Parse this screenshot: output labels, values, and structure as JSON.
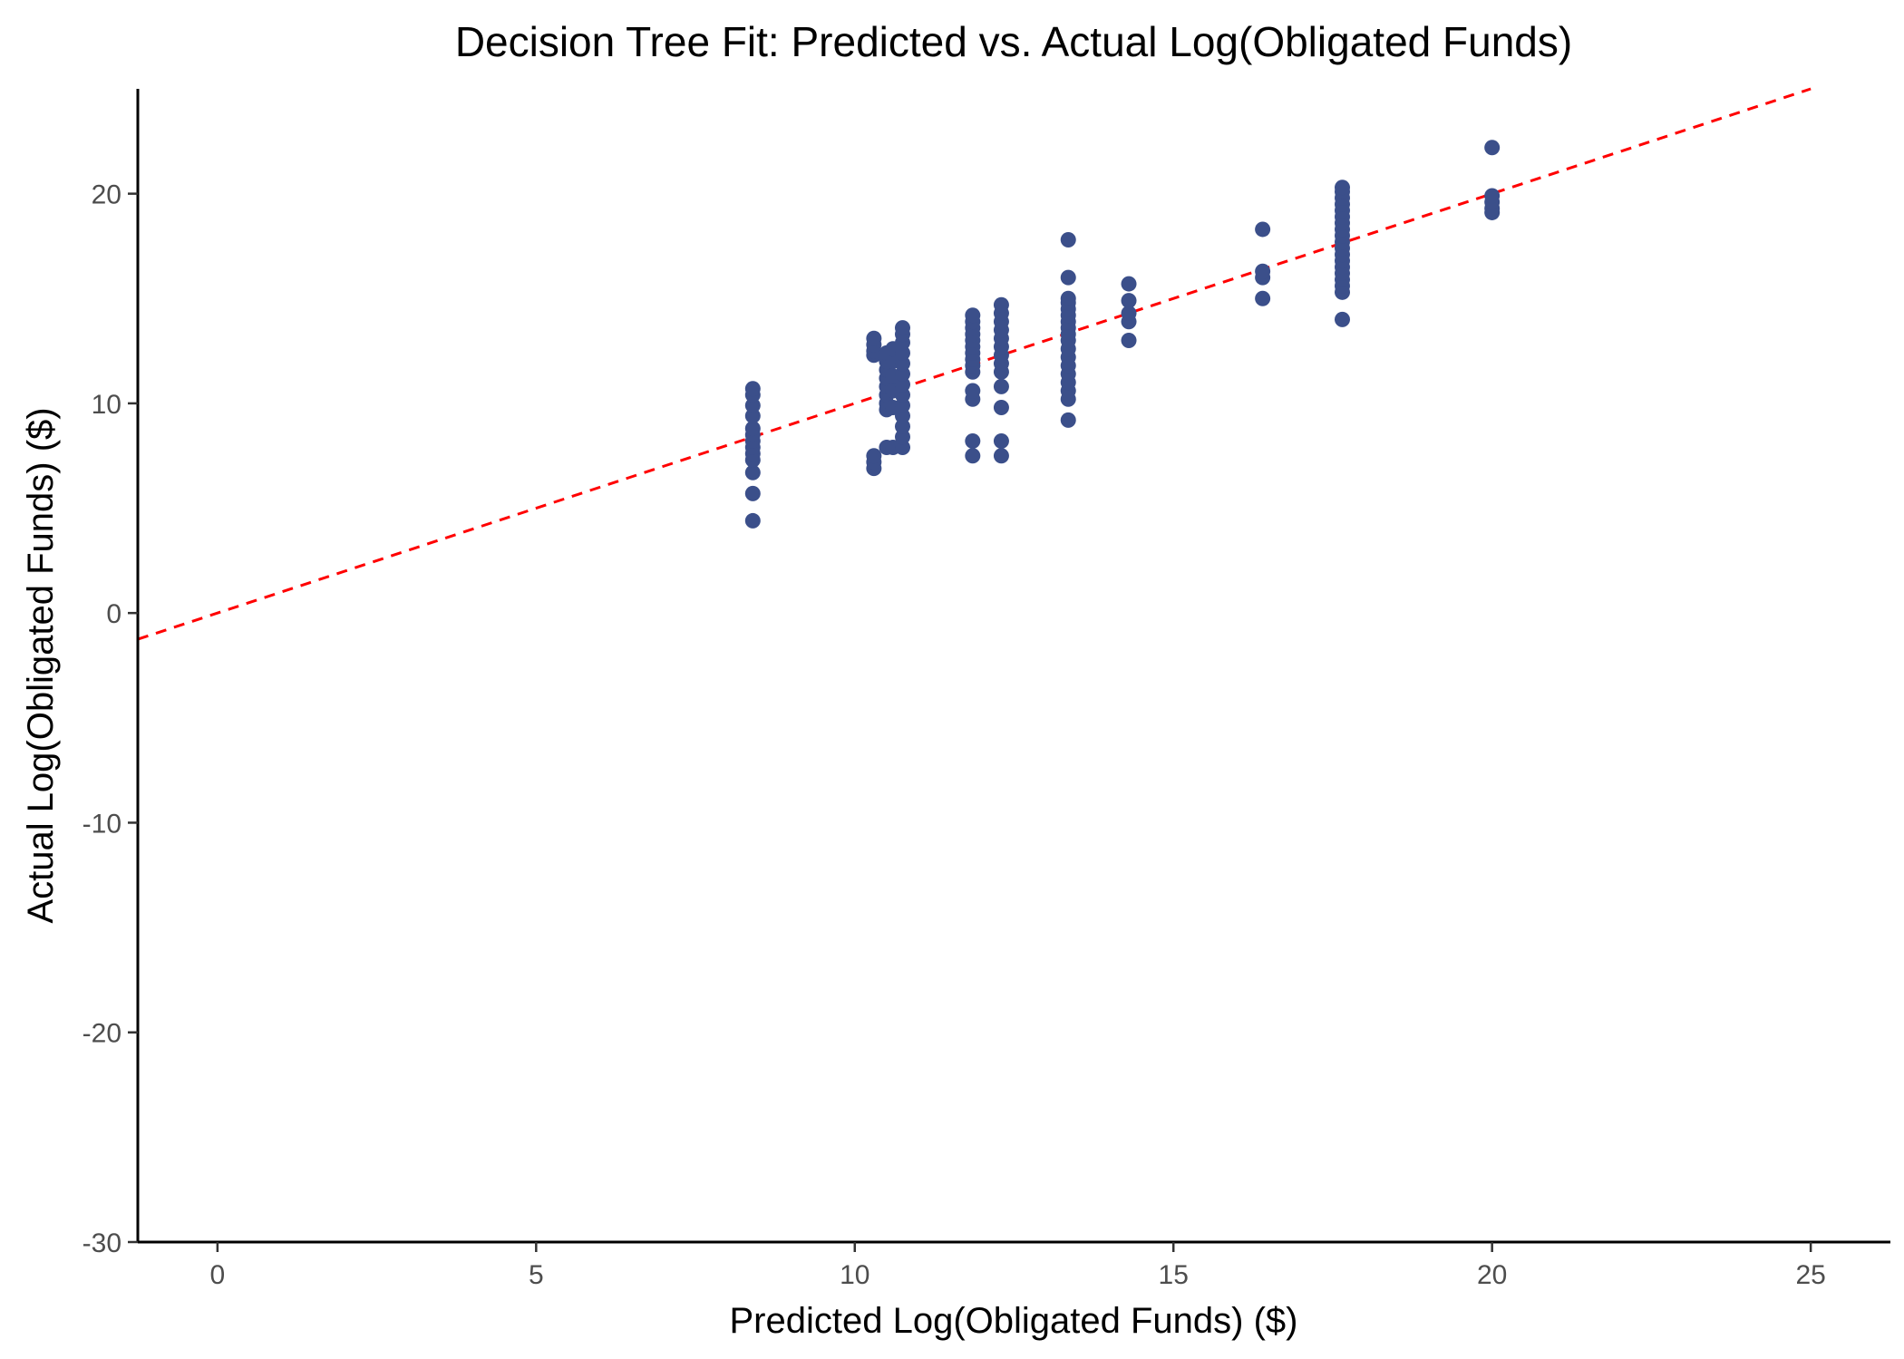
{
  "chart_data": {
    "type": "scatter",
    "title": "Decision Tree Fit: Predicted vs. Actual Log(Obligated Funds)",
    "xlabel": "Predicted Log(Obligated Funds) ($)",
    "ylabel": "Actual Log(Obligated Funds) ($)",
    "xlim": [
      -1.25,
      26.25
    ],
    "ylim": [
      -30,
      25
    ],
    "x_ticks": [
      0,
      5,
      10,
      15,
      20,
      25
    ],
    "y_ticks": [
      -30,
      -20,
      -10,
      0,
      10,
      20
    ],
    "x_tick_labels": [
      "0",
      "5",
      "10",
      "15",
      "20",
      "25"
    ],
    "y_tick_labels": [
      "-30",
      "-20",
      "-10",
      "0",
      "10",
      "20"
    ],
    "grid": false,
    "legend": "none",
    "point_color": "#3b4f8a",
    "reference_line": {
      "slope": 1,
      "intercept": 0,
      "color": "#ff0000",
      "style": "dashed"
    },
    "points": [
      {
        "x": 8.4,
        "y": 4.4
      },
      {
        "x": 8.4,
        "y": 5.7
      },
      {
        "x": 8.4,
        "y": 6.7
      },
      {
        "x": 8.4,
        "y": 7.3
      },
      {
        "x": 8.4,
        "y": 7.6
      },
      {
        "x": 8.4,
        "y": 7.9
      },
      {
        "x": 8.4,
        "y": 8.2
      },
      {
        "x": 8.4,
        "y": 8.5
      },
      {
        "x": 8.4,
        "y": 8.8
      },
      {
        "x": 8.4,
        "y": 9.4
      },
      {
        "x": 8.4,
        "y": 9.9
      },
      {
        "x": 8.4,
        "y": 10.4
      },
      {
        "x": 8.4,
        "y": 10.7
      },
      {
        "x": 10.3,
        "y": 6.9
      },
      {
        "x": 10.3,
        "y": 7.2
      },
      {
        "x": 10.3,
        "y": 7.5
      },
      {
        "x": 10.3,
        "y": 12.3
      },
      {
        "x": 10.3,
        "y": 12.5
      },
      {
        "x": 10.3,
        "y": 12.8
      },
      {
        "x": 10.3,
        "y": 13.1
      },
      {
        "x": 10.5,
        "y": 7.9
      },
      {
        "x": 10.5,
        "y": 9.7
      },
      {
        "x": 10.5,
        "y": 10.0
      },
      {
        "x": 10.5,
        "y": 10.4
      },
      {
        "x": 10.5,
        "y": 10.8
      },
      {
        "x": 10.5,
        "y": 11.2
      },
      {
        "x": 10.5,
        "y": 11.6
      },
      {
        "x": 10.5,
        "y": 12.0
      },
      {
        "x": 10.5,
        "y": 12.4
      },
      {
        "x": 10.6,
        "y": 7.9
      },
      {
        "x": 10.6,
        "y": 9.8
      },
      {
        "x": 10.6,
        "y": 10.6
      },
      {
        "x": 10.6,
        "y": 11.3
      },
      {
        "x": 10.6,
        "y": 12.0
      },
      {
        "x": 10.6,
        "y": 12.6
      },
      {
        "x": 10.75,
        "y": 7.9
      },
      {
        "x": 10.75,
        "y": 8.4
      },
      {
        "x": 10.75,
        "y": 8.9
      },
      {
        "x": 10.75,
        "y": 9.4
      },
      {
        "x": 10.75,
        "y": 9.9
      },
      {
        "x": 10.75,
        "y": 10.4
      },
      {
        "x": 10.75,
        "y": 10.9
      },
      {
        "x": 10.75,
        "y": 11.4
      },
      {
        "x": 10.75,
        "y": 11.9
      },
      {
        "x": 10.75,
        "y": 12.4
      },
      {
        "x": 10.75,
        "y": 12.9
      },
      {
        "x": 10.75,
        "y": 13.3
      },
      {
        "x": 10.75,
        "y": 13.6
      },
      {
        "x": 11.85,
        "y": 7.5
      },
      {
        "x": 11.85,
        "y": 8.2
      },
      {
        "x": 11.85,
        "y": 10.2
      },
      {
        "x": 11.85,
        "y": 10.6
      },
      {
        "x": 11.85,
        "y": 11.5
      },
      {
        "x": 11.85,
        "y": 11.8
      },
      {
        "x": 11.85,
        "y": 12.1
      },
      {
        "x": 11.85,
        "y": 12.4
      },
      {
        "x": 11.85,
        "y": 12.7
      },
      {
        "x": 11.85,
        "y": 13.0
      },
      {
        "x": 11.85,
        "y": 13.3
      },
      {
        "x": 11.85,
        "y": 13.6
      },
      {
        "x": 11.85,
        "y": 13.9
      },
      {
        "x": 11.85,
        "y": 14.2
      },
      {
        "x": 12.3,
        "y": 7.5
      },
      {
        "x": 12.3,
        "y": 8.2
      },
      {
        "x": 12.3,
        "y": 9.8
      },
      {
        "x": 12.3,
        "y": 10.8
      },
      {
        "x": 12.3,
        "y": 11.5
      },
      {
        "x": 12.3,
        "y": 11.9
      },
      {
        "x": 12.3,
        "y": 12.3
      },
      {
        "x": 12.3,
        "y": 12.7
      },
      {
        "x": 12.3,
        "y": 13.1
      },
      {
        "x": 12.3,
        "y": 13.5
      },
      {
        "x": 12.3,
        "y": 13.9
      },
      {
        "x": 12.3,
        "y": 14.3
      },
      {
        "x": 12.3,
        "y": 14.7
      },
      {
        "x": 13.35,
        "y": 9.2
      },
      {
        "x": 13.35,
        "y": 10.2
      },
      {
        "x": 13.35,
        "y": 10.6
      },
      {
        "x": 13.35,
        "y": 11.0
      },
      {
        "x": 13.35,
        "y": 11.4
      },
      {
        "x": 13.35,
        "y": 11.8
      },
      {
        "x": 13.35,
        "y": 12.2
      },
      {
        "x": 13.35,
        "y": 12.6
      },
      {
        "x": 13.35,
        "y": 13.0
      },
      {
        "x": 13.35,
        "y": 13.3
      },
      {
        "x": 13.35,
        "y": 13.6
      },
      {
        "x": 13.35,
        "y": 13.9
      },
      {
        "x": 13.35,
        "y": 14.2
      },
      {
        "x": 13.35,
        "y": 14.5
      },
      {
        "x": 13.35,
        "y": 14.8
      },
      {
        "x": 13.35,
        "y": 15.0
      },
      {
        "x": 13.35,
        "y": 16.0
      },
      {
        "x": 13.35,
        "y": 17.8
      },
      {
        "x": 14.3,
        "y": 13.0
      },
      {
        "x": 14.3,
        "y": 13.9
      },
      {
        "x": 14.3,
        "y": 14.3
      },
      {
        "x": 14.3,
        "y": 14.9
      },
      {
        "x": 14.3,
        "y": 15.7
      },
      {
        "x": 16.4,
        "y": 15.0
      },
      {
        "x": 16.4,
        "y": 16.0
      },
      {
        "x": 16.4,
        "y": 16.3
      },
      {
        "x": 16.4,
        "y": 18.3
      },
      {
        "x": 17.65,
        "y": 14.0
      },
      {
        "x": 17.65,
        "y": 15.3
      },
      {
        "x": 17.65,
        "y": 15.6
      },
      {
        "x": 17.65,
        "y": 15.9
      },
      {
        "x": 17.65,
        "y": 16.2
      },
      {
        "x": 17.65,
        "y": 16.5
      },
      {
        "x": 17.65,
        "y": 16.8
      },
      {
        "x": 17.65,
        "y": 17.1
      },
      {
        "x": 17.65,
        "y": 17.4
      },
      {
        "x": 17.65,
        "y": 17.7
      },
      {
        "x": 17.65,
        "y": 18.0
      },
      {
        "x": 17.65,
        "y": 18.3
      },
      {
        "x": 17.65,
        "y": 18.6
      },
      {
        "x": 17.65,
        "y": 18.9
      },
      {
        "x": 17.65,
        "y": 19.2
      },
      {
        "x": 17.65,
        "y": 19.5
      },
      {
        "x": 17.65,
        "y": 19.8
      },
      {
        "x": 17.65,
        "y": 20.1
      },
      {
        "x": 17.65,
        "y": 20.3
      },
      {
        "x": 20.0,
        "y": 19.1
      },
      {
        "x": 20.0,
        "y": 19.3
      },
      {
        "x": 20.0,
        "y": 19.6
      },
      {
        "x": 20.0,
        "y": 19.9
      },
      {
        "x": 20.0,
        "y": 22.2
      }
    ]
  }
}
